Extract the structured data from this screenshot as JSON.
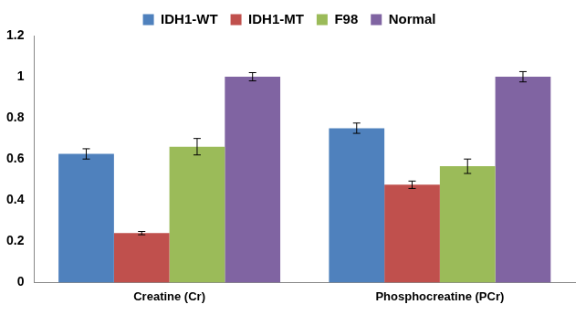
{
  "chart_data": {
    "type": "bar",
    "categories": [
      "Creatine (Cr)",
      "Phosphocreatine (PCr)"
    ],
    "series": [
      {
        "name": "IDH1-WT",
        "color": "#4f81bd",
        "values": [
          0.625,
          0.75
        ],
        "errors": [
          0.025,
          0.025
        ]
      },
      {
        "name": "IDH1-MT",
        "color": "#c0504d",
        "values": [
          0.24,
          0.475
        ],
        "errors": [
          0.008,
          0.018
        ]
      },
      {
        "name": "F98",
        "color": "#9bbb59",
        "values": [
          0.66,
          0.565
        ],
        "errors": [
          0.04,
          0.035
        ]
      },
      {
        "name": "Normal",
        "color": "#8064a2",
        "values": [
          1.0,
          1.0
        ],
        "errors": [
          0.02,
          0.025
        ]
      }
    ],
    "ylim": [
      0,
      1.2
    ],
    "yticks": [
      0,
      0.2,
      0.4,
      0.6,
      0.8,
      1,
      1.2
    ],
    "grid": false,
    "legend": "top"
  }
}
